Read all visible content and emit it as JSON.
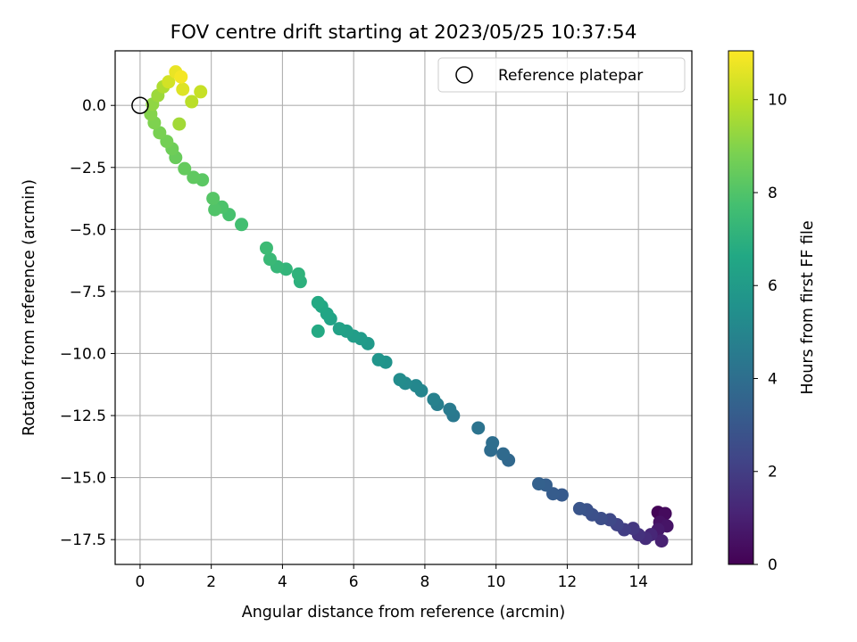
{
  "chart_data": {
    "type": "scatter",
    "title": "FOV centre drift starting at 2023/05/25 10:37:54",
    "xlabel": "Angular distance from reference (arcmin)",
    "ylabel": "Rotation from reference (arcmin)",
    "xlim": [
      -0.7,
      15.5
    ],
    "ylim": [
      -18.5,
      2.2
    ],
    "xticks": [
      0,
      2,
      4,
      6,
      8,
      10,
      12,
      14
    ],
    "yticks": [
      0.0,
      -2.5,
      -5.0,
      -7.5,
      -10.0,
      -12.5,
      -15.0,
      -17.5
    ],
    "grid": true,
    "legend": {
      "position": "top-right",
      "entries": [
        "Reference platepar"
      ]
    },
    "reference_point": {
      "x": 0.0,
      "y": 0.0
    },
    "colorbar": {
      "label": "Hours from first FF file",
      "range": [
        0,
        11.05
      ],
      "ticks": [
        0,
        2,
        4,
        6,
        8,
        10
      ],
      "colormap": "viridis"
    },
    "series": [
      {
        "marker": "filled circle",
        "points": [
          [
            14.55,
            -16.4,
            0.1
          ],
          [
            14.75,
            -16.45,
            0.3
          ],
          [
            14.6,
            -16.8,
            0.5
          ],
          [
            14.8,
            -16.95,
            0.6
          ],
          [
            14.55,
            -17.1,
            0.8
          ],
          [
            14.65,
            -17.55,
            1.0
          ],
          [
            14.35,
            -17.3,
            1.2
          ],
          [
            14.2,
            -17.45,
            1.4
          ],
          [
            14.0,
            -17.3,
            1.6
          ],
          [
            13.85,
            -17.05,
            1.8
          ],
          [
            13.6,
            -17.1,
            2.0
          ],
          [
            13.4,
            -16.9,
            2.2
          ],
          [
            13.2,
            -16.7,
            2.4
          ],
          [
            12.95,
            -16.65,
            2.6
          ],
          [
            12.7,
            -16.5,
            2.7
          ],
          [
            12.55,
            -16.3,
            2.8
          ],
          [
            12.35,
            -16.25,
            2.9
          ],
          [
            11.85,
            -15.7,
            3.1
          ],
          [
            11.6,
            -15.65,
            3.2
          ],
          [
            11.4,
            -15.3,
            3.3
          ],
          [
            11.2,
            -15.25,
            3.4
          ],
          [
            10.35,
            -14.3,
            3.7
          ],
          [
            10.2,
            -14.05,
            3.8
          ],
          [
            9.85,
            -13.9,
            3.9
          ],
          [
            9.9,
            -13.6,
            4.0
          ],
          [
            9.5,
            -13.0,
            4.2
          ],
          [
            8.8,
            -12.5,
            4.4
          ],
          [
            8.7,
            -12.25,
            4.5
          ],
          [
            8.35,
            -12.05,
            4.7
          ],
          [
            8.25,
            -11.85,
            4.8
          ],
          [
            7.9,
            -11.5,
            5.0
          ],
          [
            7.75,
            -11.3,
            5.1
          ],
          [
            7.45,
            -11.2,
            5.2
          ],
          [
            7.3,
            -11.05,
            5.3
          ],
          [
            6.9,
            -10.35,
            5.6
          ],
          [
            6.7,
            -10.25,
            5.7
          ],
          [
            6.4,
            -9.6,
            5.9
          ],
          [
            6.2,
            -9.4,
            6.0
          ],
          [
            6.0,
            -9.3,
            6.1
          ],
          [
            5.8,
            -9.1,
            6.2
          ],
          [
            5.6,
            -9.0,
            6.3
          ],
          [
            5.35,
            -8.6,
            6.4
          ],
          [
            5.25,
            -8.4,
            6.5
          ],
          [
            5.1,
            -8.1,
            6.6
          ],
          [
            5.0,
            -7.95,
            6.7
          ],
          [
            5.0,
            -9.1,
            6.7
          ],
          [
            4.5,
            -7.1,
            7.0
          ],
          [
            4.45,
            -6.8,
            7.1
          ],
          [
            4.1,
            -6.6,
            7.2
          ],
          [
            3.85,
            -6.5,
            7.3
          ],
          [
            3.65,
            -6.2,
            7.4
          ],
          [
            3.55,
            -5.75,
            7.5
          ],
          [
            2.85,
            -4.8,
            7.7
          ],
          [
            2.5,
            -4.4,
            7.8
          ],
          [
            2.3,
            -4.1,
            7.9
          ],
          [
            2.1,
            -4.2,
            8.0
          ],
          [
            2.05,
            -3.75,
            8.1
          ],
          [
            1.75,
            -3.0,
            8.2
          ],
          [
            1.5,
            -2.9,
            8.3
          ],
          [
            1.25,
            -2.55,
            8.4
          ],
          [
            1.0,
            -2.1,
            8.5
          ],
          [
            0.9,
            -1.75,
            8.6
          ],
          [
            0.75,
            -1.45,
            8.7
          ],
          [
            0.55,
            -1.1,
            8.8
          ],
          [
            0.4,
            -0.7,
            8.9
          ],
          [
            0.3,
            -0.35,
            9.0
          ],
          [
            0.35,
            0.05,
            9.2
          ],
          [
            0.5,
            0.4,
            9.4
          ],
          [
            1.1,
            -0.75,
            9.5
          ],
          [
            0.65,
            0.75,
            9.7
          ],
          [
            1.45,
            0.15,
            9.9
          ],
          [
            1.7,
            0.55,
            10.1
          ],
          [
            0.8,
            0.95,
            10.3
          ],
          [
            1.2,
            0.65,
            10.5
          ],
          [
            1.0,
            1.35,
            10.7
          ],
          [
            1.15,
            1.15,
            10.9
          ]
        ]
      }
    ]
  }
}
